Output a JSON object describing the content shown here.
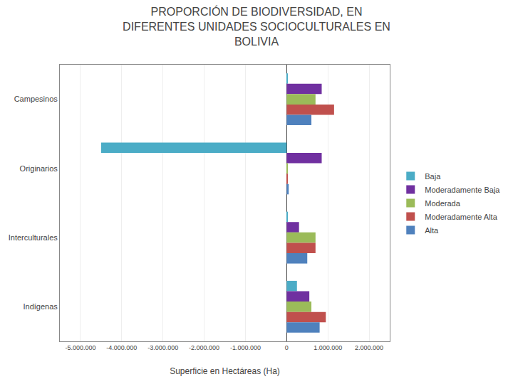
{
  "chart_data": {
    "type": "bar",
    "orientation": "horizontal",
    "title": "PROPORCIÓN DE BIODIVERSIDAD, EN\nDIFERENTES UNIDADES SOCIOCULTURALES EN\nBOLIVIA",
    "xlabel": "Superficie en Hectáreas (Ha)",
    "categories": [
      "Campesinos",
      "Originarios",
      "Interculturales",
      "Indígenas"
    ],
    "series": [
      {
        "name": "Baja",
        "color": "#4BACC6",
        "values": [
          30000,
          -4500000,
          30000,
          250000
        ]
      },
      {
        "name": "Moderadamente Baja",
        "color": "#7030A0",
        "values": [
          850000,
          850000,
          300000,
          550000
        ]
      },
      {
        "name": "Moderada",
        "color": "#9BBB59",
        "values": [
          700000,
          20000,
          700000,
          600000
        ]
      },
      {
        "name": "Moderadamente Alta",
        "color": "#C0504D",
        "values": [
          1150000,
          15000,
          700000,
          950000
        ]
      },
      {
        "name": "Alta",
        "color": "#4F81BD",
        "values": [
          600000,
          50000,
          500000,
          800000
        ]
      }
    ],
    "xlim": [
      -5500000,
      2500000
    ],
    "xticks": [
      {
        "value": -5000000,
        "label": "-5.000.000"
      },
      {
        "value": -4000000,
        "label": "-4.000.000"
      },
      {
        "value": -3000000,
        "label": "-3.000.000"
      },
      {
        "value": -2000000,
        "label": "-2.000.000"
      },
      {
        "value": -1000000,
        "label": "-1.000.000"
      },
      0,
      {
        "value": 1000000,
        "label": "1.000.000"
      },
      {
        "value": 2000000,
        "label": "2.000.000"
      }
    ],
    "grid": true,
    "legend": "right"
  }
}
